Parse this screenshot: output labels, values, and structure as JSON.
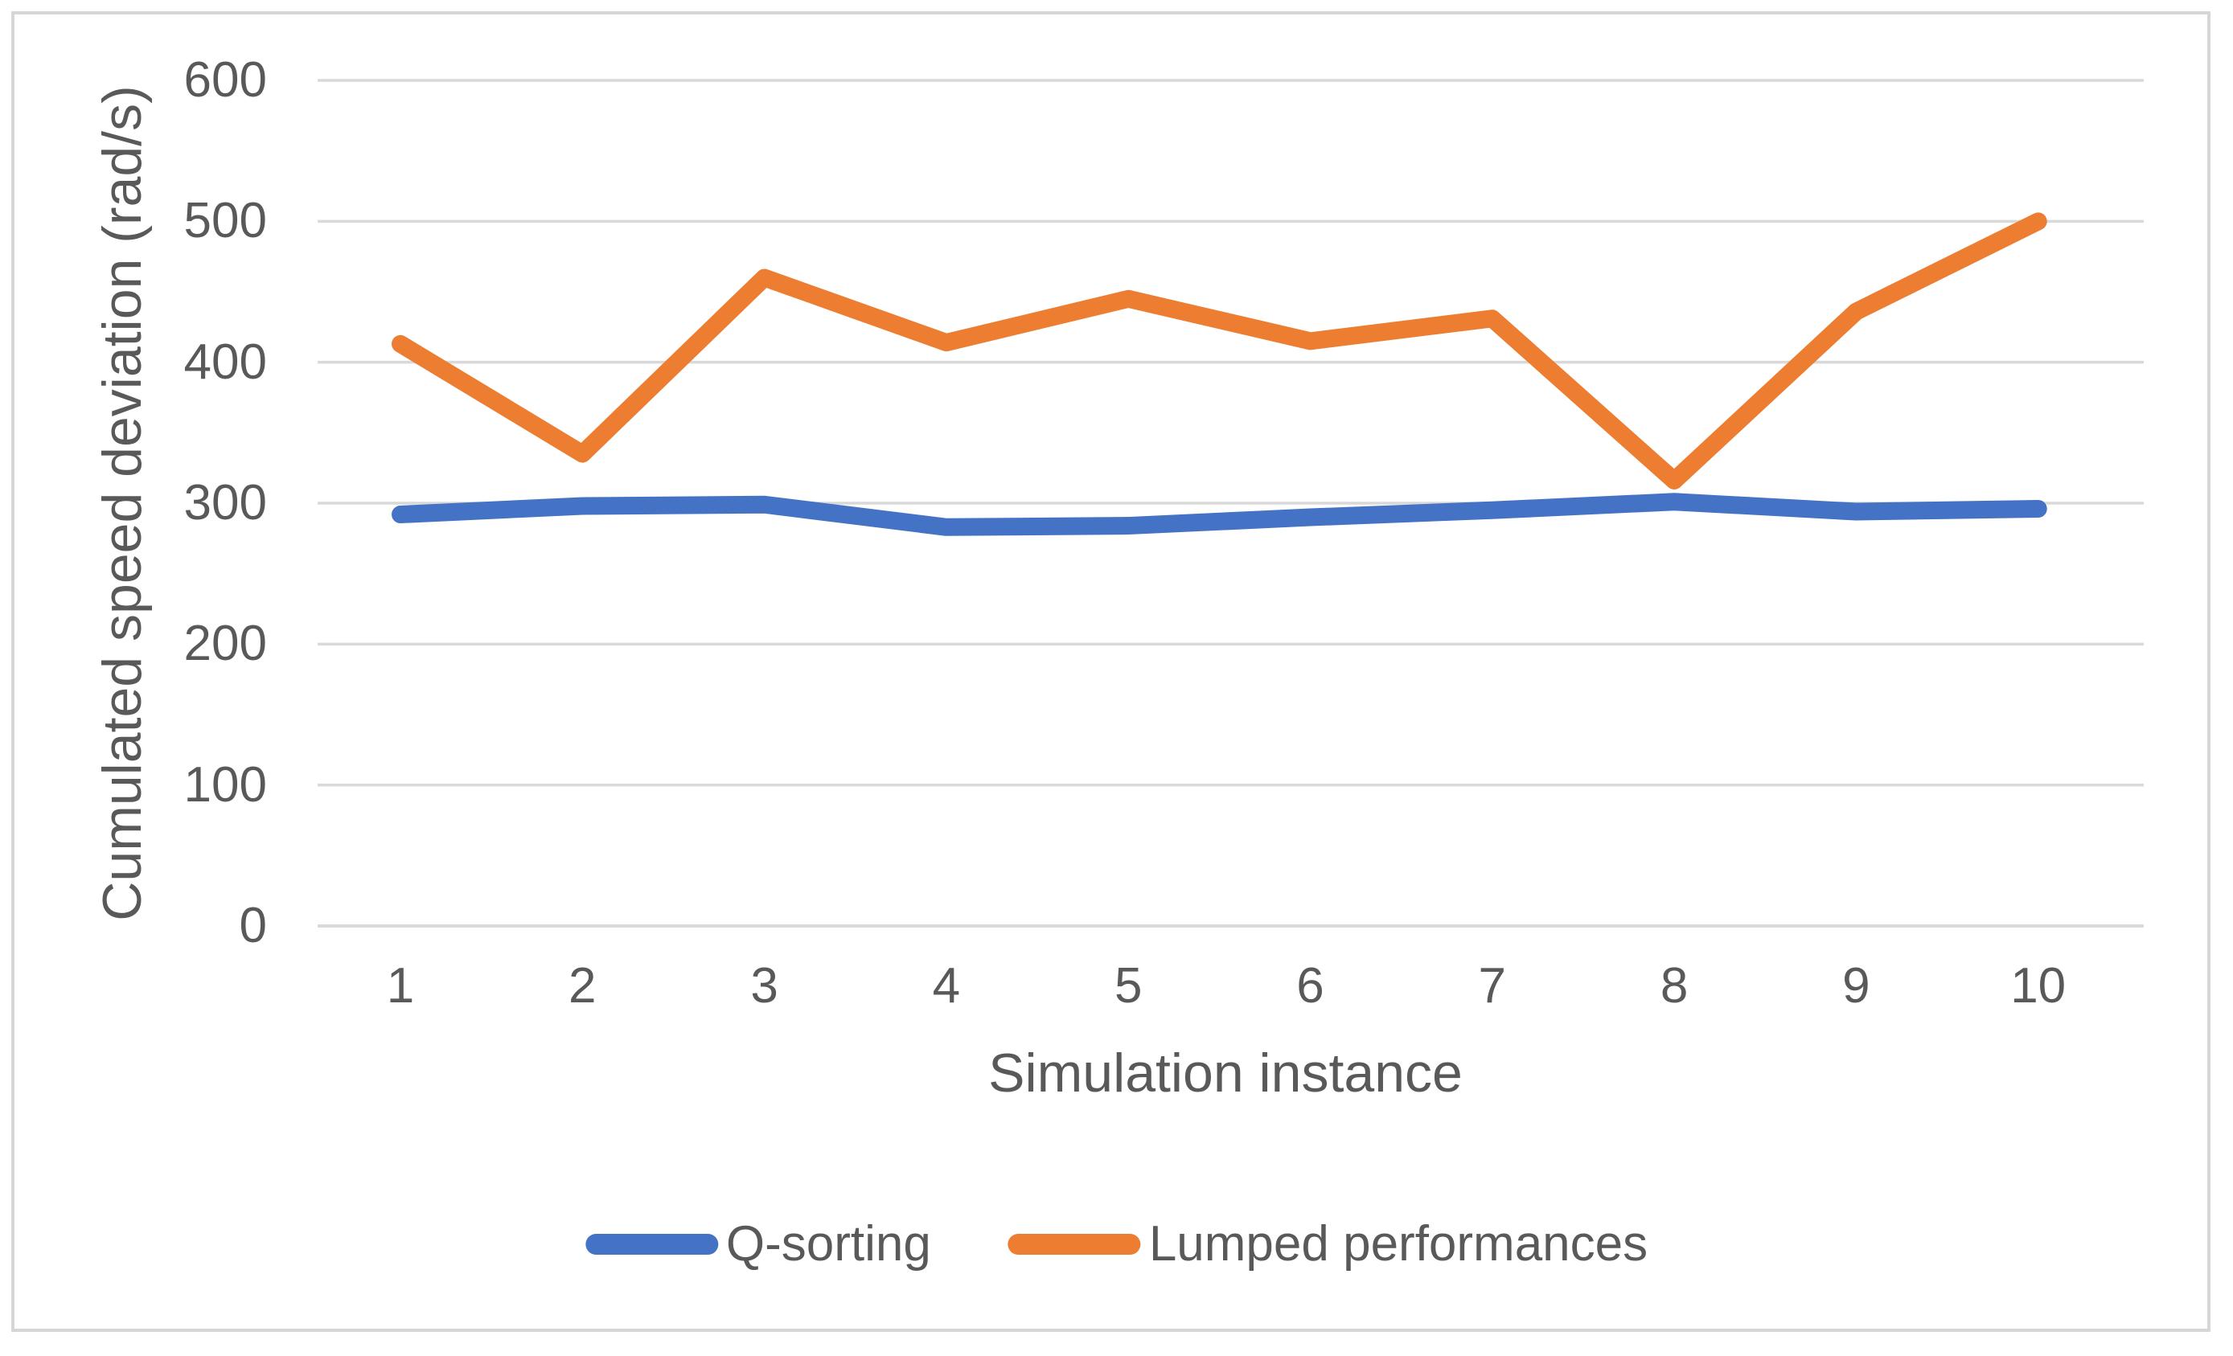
{
  "figure": {
    "background": "#ffffff",
    "border_color": "#d6d6d6"
  },
  "chart_data": {
    "type": "line",
    "title": "",
    "xlabel": "Simulation instance",
    "ylabel": "Cumulated speed deviation (rad/s)",
    "categories": [
      "1",
      "2",
      "3",
      "4",
      "5",
      "6",
      "7",
      "8",
      "9",
      "10"
    ],
    "ylim": [
      0,
      600
    ],
    "yticks": [
      0,
      100,
      200,
      300,
      400,
      500,
      600
    ],
    "grid": true,
    "legend_position": "bottom",
    "text_color": "#595959",
    "gridline_color": "#d9d9d9",
    "series": [
      {
        "name": "Q-sorting",
        "color": "#4472C4",
        "values": [
          292,
          298,
          299,
          283,
          284,
          290,
          295,
          301,
          294,
          296
        ]
      },
      {
        "name": "Lumped performances",
        "color": "#ED7D31",
        "values": [
          413,
          335,
          460,
          414,
          445,
          415,
          431,
          316,
          436,
          500
        ]
      }
    ]
  }
}
